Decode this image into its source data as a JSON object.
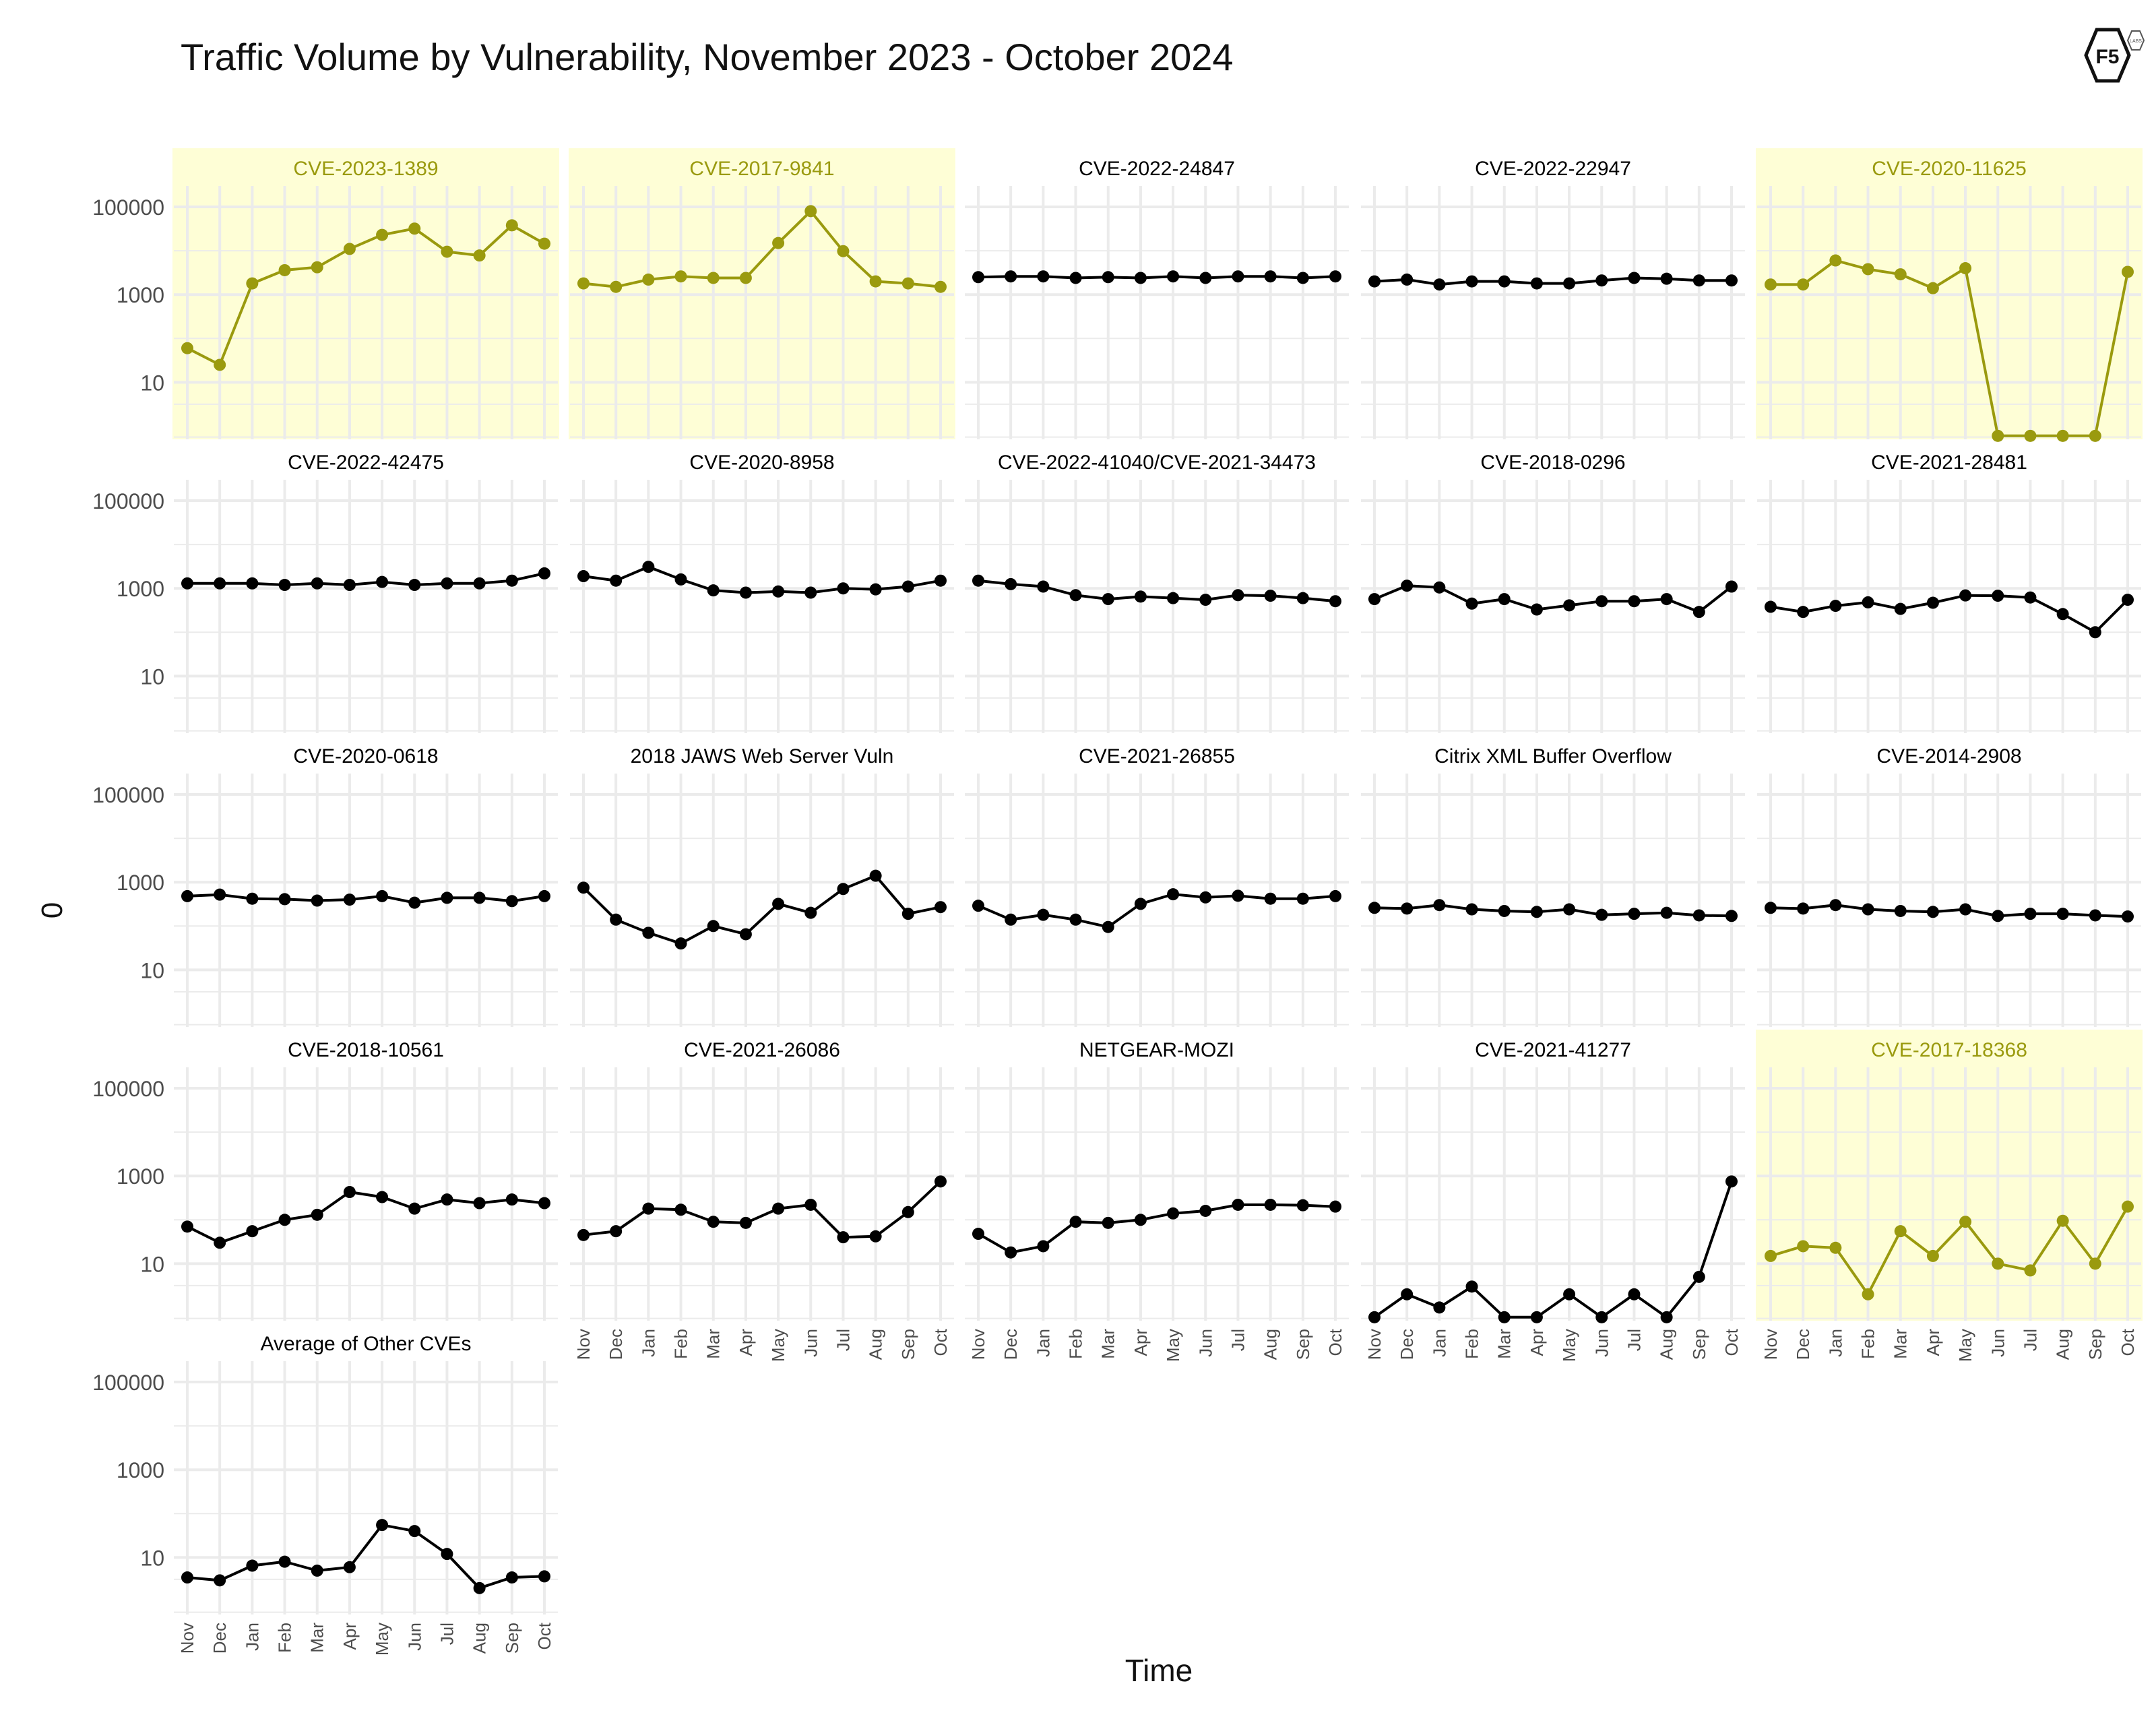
{
  "title": "Traffic Volume by Vulnerability, November 2023 - October 2024",
  "logo": {
    "text": "F5",
    "badge": "LABS"
  },
  "chart_data": {
    "type": "line",
    "title": "Traffic Volume by Vulnerability, November 2023 - October 2024",
    "xlabel": "Time",
    "ylabel": "0",
    "y_scale": "log10",
    "ylim": [
      0.5,
      300000
    ],
    "y_ticks": [
      10,
      1000,
      100000
    ],
    "y_tick_labels": [
      "10",
      "1000",
      "100000"
    ],
    "grid": true,
    "legend": "none",
    "colors": {
      "highlight": "#9a9a0e",
      "highlight_bg": "#fefed6",
      "normal": "#000000",
      "grid": "#ebebeb"
    },
    "categories": [
      "Nov",
      "Dec",
      "Jan",
      "Feb",
      "Mar",
      "Apr",
      "May",
      "Jun",
      "Jul",
      "Aug",
      "Sep",
      "Oct"
    ],
    "panels": [
      {
        "name": "CVE-2023-1389",
        "highlight": true,
        "values": [
          60,
          25,
          1800,
          3600,
          4200,
          11000,
          23000,
          32000,
          9500,
          7800,
          38000,
          14500
        ]
      },
      {
        "name": "CVE-2017-9841",
        "highlight": true,
        "values": [
          1800,
          1500,
          2200,
          2600,
          2400,
          2400,
          15000,
          80000,
          9800,
          2000,
          1800,
          1500
        ]
      },
      {
        "name": "CVE-2022-24847",
        "highlight": false,
        "values": [
          2500,
          2600,
          2600,
          2400,
          2500,
          2400,
          2600,
          2400,
          2600,
          2600,
          2400,
          2600
        ]
      },
      {
        "name": "CVE-2022-22947",
        "highlight": false,
        "values": [
          2000,
          2200,
          1700,
          2000,
          2000,
          1800,
          1800,
          2100,
          2400,
          2300,
          2100,
          2100
        ]
      },
      {
        "name": "CVE-2020-11625",
        "highlight": true,
        "values": [
          1700,
          1700,
          6000,
          3800,
          2900,
          1400,
          4000,
          0.6,
          0.6,
          0.6,
          0.6,
          3300
        ]
      },
      {
        "name": "CVE-2022-42475",
        "highlight": false,
        "values": [
          1300,
          1300,
          1300,
          1200,
          1300,
          1200,
          1400,
          1200,
          1300,
          1300,
          1500,
          2200
        ]
      },
      {
        "name": "CVE-2020-8958",
        "highlight": false,
        "values": [
          1900,
          1500,
          3100,
          1600,
          900,
          800,
          850,
          800,
          1000,
          950,
          1100,
          1500
        ]
      },
      {
        "name": "CVE-2022-41040/CVE-2021-34473",
        "highlight": false,
        "values": [
          1500,
          1250,
          1100,
          700,
          570,
          650,
          600,
          550,
          700,
          680,
          600,
          510
        ]
      },
      {
        "name": "CVE-2018-0296",
        "highlight": false,
        "values": [
          570,
          1150,
          1050,
          450,
          570,
          330,
          410,
          510,
          510,
          570,
          290,
          1100
        ]
      },
      {
        "name": "CVE-2021-28481",
        "highlight": false,
        "values": [
          380,
          290,
          400,
          480,
          340,
          470,
          690,
          680,
          620,
          260,
          100,
          550
        ]
      },
      {
        "name": "CVE-2020-0618",
        "highlight": false,
        "values": [
          480,
          520,
          420,
          410,
          380,
          400,
          480,
          340,
          440,
          440,
          370,
          480
        ]
      },
      {
        "name": "2018 JAWS Web Server Vuln",
        "highlight": false,
        "values": [
          750,
          140,
          70,
          40,
          100,
          65,
          320,
          200,
          700,
          1400,
          190,
          270
        ]
      },
      {
        "name": "CVE-2021-26855",
        "highlight": false,
        "values": [
          290,
          140,
          180,
          140,
          95,
          320,
          530,
          450,
          490,
          420,
          420,
          480
        ]
      },
      {
        "name": "Citrix XML Buffer Overflow",
        "highlight": false,
        "values": [
          260,
          250,
          300,
          240,
          220,
          210,
          240,
          180,
          190,
          200,
          175,
          170
        ]
      },
      {
        "name": "CVE-2014-2908",
        "highlight": false,
        "values": [
          260,
          250,
          300,
          240,
          220,
          210,
          240,
          170,
          190,
          190,
          175,
          165
        ]
      },
      {
        "name": "CVE-2018-10561",
        "highlight": false,
        "values": [
          70,
          30,
          55,
          100,
          130,
          430,
          330,
          180,
          290,
          240,
          290,
          240
        ]
      },
      {
        "name": "CVE-2021-26086",
        "highlight": false,
        "values": [
          45,
          55,
          180,
          170,
          90,
          85,
          180,
          220,
          40,
          42,
          150,
          750
        ]
      },
      {
        "name": "NETGEAR-MOZI",
        "highlight": false,
        "values": [
          48,
          18,
          25,
          90,
          85,
          100,
          140,
          160,
          220,
          220,
          215,
          200
        ]
      },
      {
        "name": "CVE-2021-41277",
        "highlight": false,
        "values": [
          0.6,
          2,
          1,
          3,
          0.6,
          0.6,
          2,
          0.6,
          2,
          0.6,
          5,
          750
        ]
      },
      {
        "name": "CVE-2017-18368",
        "highlight": true,
        "values": [
          15,
          25,
          23,
          2,
          55,
          15,
          90,
          10,
          7,
          95,
          10,
          200
        ]
      },
      {
        "name": "Average of Other CVEs",
        "highlight": false,
        "values": [
          3.5,
          3,
          6.5,
          8,
          5,
          6,
          55,
          40,
          12,
          2,
          3.5,
          3.7
        ]
      }
    ]
  }
}
